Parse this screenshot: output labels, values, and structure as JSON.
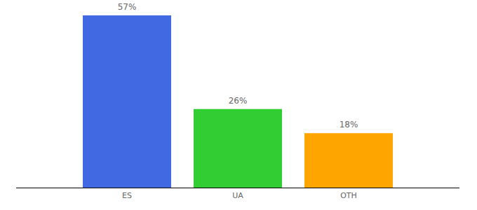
{
  "chart_data": {
    "type": "bar",
    "categories": [
      "ES",
      "UA",
      "OTH"
    ],
    "values": [
      57,
      26,
      18
    ],
    "value_labels": [
      "57%",
      "26%",
      "18%"
    ],
    "colors": [
      "#4169e1",
      "#32cd32",
      "#ffa500"
    ],
    "ylim": [
      0,
      57
    ],
    "grid": false,
    "data_labels": true,
    "tick_labels": "x"
  }
}
